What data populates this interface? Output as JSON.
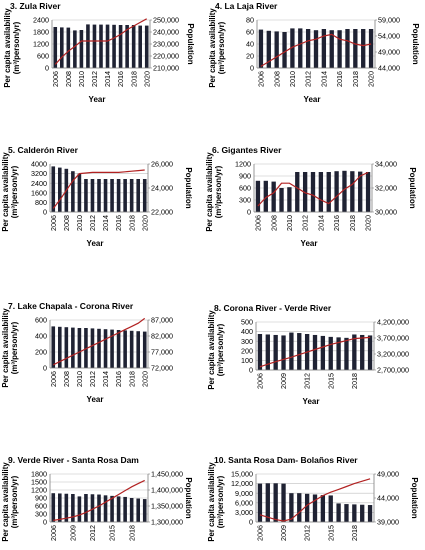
{
  "colors": {
    "bar": "#1f2233",
    "line": "#b22222",
    "grid": "#bfbfbf",
    "axis": "#7f7f7f"
  },
  "chart_data": [
    {
      "type": "bar",
      "title": "3. Zula River",
      "xlabel": "Year",
      "ylabel_lines": [
        "Per capita availability",
        "(m³/person/yr)"
      ],
      "y2label": "Population",
      "x": [
        2006,
        2007,
        2008,
        2009,
        2010,
        2011,
        2012,
        2013,
        2014,
        2015,
        2016,
        2017,
        2018,
        2019,
        2020
      ],
      "x_ticks": [
        2006,
        2008,
        2010,
        2012,
        2014,
        2016,
        2018,
        2020
      ],
      "ylim": [
        0,
        2400
      ],
      "y_ticks": [
        0,
        600,
        1200,
        1800,
        2400
      ],
      "y_tick_labels": [
        "0",
        "600",
        "1200",
        "1800",
        "2400"
      ],
      "y2lim": [
        210000,
        250000
      ],
      "y2_ticks": [
        210000,
        220000,
        230000,
        240000,
        250000
      ],
      "y2_tick_labels": [
        "210,000",
        "220,000",
        "230,000",
        "240,000",
        "250,000"
      ],
      "series": [
        {
          "axis": "left",
          "kind": "bar",
          "values": [
            2050,
            2030,
            2020,
            1880,
            1900,
            2180,
            2170,
            2170,
            2170,
            2160,
            2150,
            2150,
            2150,
            2120,
            2120
          ]
        },
        {
          "axis": "right",
          "kind": "line",
          "values": [
            213000,
            219000,
            224000,
            228000,
            232500,
            232500,
            232500,
            232500,
            232500,
            235000,
            238000,
            242000,
            245000,
            248000,
            251000
          ]
        }
      ]
    },
    {
      "type": "bar",
      "title": "4. La Laja River",
      "xlabel": "Year",
      "ylabel_lines": [
        "Per capita availability",
        "(m³/person/yr)"
      ],
      "y2label": "Population",
      "x": [
        2006,
        2007,
        2008,
        2009,
        2010,
        2011,
        2012,
        2013,
        2014,
        2015,
        2016,
        2017,
        2018,
        2019,
        2020
      ],
      "x_ticks": [
        2006,
        2008,
        2010,
        2012,
        2014,
        2016,
        2018,
        2020
      ],
      "ylim": [
        0,
        80
      ],
      "y_ticks": [
        0,
        20,
        40,
        60,
        80
      ],
      "y_tick_labels": [
        "0",
        "20",
        "40",
        "60",
        "80"
      ],
      "y2lim": [
        44000,
        59000
      ],
      "y2_ticks": [
        44000,
        49000,
        54000,
        59000
      ],
      "y2_tick_labels": [
        "44,000",
        "49,000",
        "54,000",
        "59,000"
      ],
      "series": [
        {
          "axis": "left",
          "kind": "bar",
          "values": [
            64,
            62,
            61,
            60,
            66,
            66,
            65,
            63,
            65,
            63,
            63,
            65,
            65,
            65,
            65
          ]
        },
        {
          "axis": "right",
          "kind": "line",
          "values": [
            44500,
            46000,
            47500,
            49000,
            50500,
            51500,
            52500,
            53000,
            54000,
            54500,
            53000,
            52500,
            51500,
            51000,
            51500
          ]
        }
      ]
    },
    {
      "type": "bar",
      "title": "5. Calderón River",
      "xlabel": "Year",
      "ylabel_lines": [
        "Per capita availability",
        "(m³/person/yr)"
      ],
      "y2label": "Population",
      "x": [
        2006,
        2007,
        2008,
        2009,
        2010,
        2011,
        2012,
        2013,
        2014,
        2015,
        2016,
        2017,
        2018,
        2019,
        2020
      ],
      "x_ticks": [
        2006,
        2008,
        2010,
        2012,
        2014,
        2016,
        2018,
        2020
      ],
      "ylim": [
        0,
        4000
      ],
      "y_ticks": [
        0,
        800,
        1600,
        2400,
        3200,
        4000
      ],
      "y_tick_labels": [
        "0",
        "800",
        "1600",
        "2400",
        "3200",
        "4000"
      ],
      "y2lim": [
        22000,
        26000
      ],
      "y2_ticks": [
        22000,
        24000,
        26000
      ],
      "y2_tick_labels": [
        "22,000",
        "24,000",
        "26,000"
      ],
      "series": [
        {
          "axis": "left",
          "kind": "bar",
          "values": [
            3800,
            3700,
            3600,
            3400,
            3200,
            2750,
            2750,
            2750,
            2750,
            2750,
            2750,
            2750,
            2750,
            2750,
            2750
          ]
        },
        {
          "axis": "right",
          "kind": "line",
          "values": [
            22300,
            23000,
            23800,
            24600,
            25200,
            25250,
            25300,
            25300,
            25300,
            25300,
            25300,
            25350,
            25400,
            25450,
            25500
          ]
        }
      ]
    },
    {
      "type": "bar",
      "title": "6. Gigantes River",
      "xlabel": "Year",
      "ylabel_lines": [
        "Per capita availability",
        "(m³/person/yr)"
      ],
      "y2label": "Population",
      "x": [
        2006,
        2007,
        2008,
        2009,
        2010,
        2011,
        2012,
        2013,
        2014,
        2015,
        2016,
        2017,
        2018,
        2019,
        2020
      ],
      "x_ticks": [
        2006,
        2008,
        2010,
        2012,
        2014,
        2016,
        2018,
        2020
      ],
      "ylim": [
        0,
        1200
      ],
      "y_ticks": [
        0,
        300,
        600,
        900,
        1200
      ],
      "y_tick_labels": [
        "0",
        "300",
        "600",
        "900",
        "1200"
      ],
      "y2lim": [
        30000,
        34000
      ],
      "y2_ticks": [
        30000,
        32000,
        34000
      ],
      "y2_tick_labels": [
        "30,000",
        "32,000",
        "34,000"
      ],
      "series": [
        {
          "axis": "left",
          "kind": "bar",
          "values": [
            780,
            780,
            760,
            600,
            620,
            1000,
            1000,
            1000,
            1000,
            1000,
            1020,
            1030,
            1020,
            1010,
            1000
          ]
        },
        {
          "axis": "right",
          "kind": "line",
          "values": [
            30500,
            31200,
            31600,
            32400,
            32400,
            32000,
            31600,
            31400,
            31000,
            30700,
            31300,
            31900,
            32300,
            33000,
            33300
          ]
        }
      ]
    },
    {
      "type": "bar",
      "title": "7. Lake Chapala - Corona River",
      "xlabel": "Year",
      "ylabel_lines": [
        "Per capita availability",
        "(m³/person/yr)"
      ],
      "y2label": "",
      "x": [
        2006,
        2007,
        2008,
        2009,
        2010,
        2011,
        2012,
        2013,
        2014,
        2015,
        2016,
        2017,
        2018,
        2019,
        2020
      ],
      "x_ticks": [
        2006,
        2008,
        2010,
        2012,
        2014,
        2016,
        2018,
        2020
      ],
      "ylim": [
        0,
        600
      ],
      "y_ticks": [
        0,
        200,
        400,
        600
      ],
      "y_tick_labels": [
        "0",
        "200",
        "400",
        "600"
      ],
      "y2lim": [
        72000,
        87000
      ],
      "y2_ticks": [
        72000,
        77000,
        82000,
        87000
      ],
      "y2_tick_labels": [
        "72,000",
        "77,000",
        "82,000",
        "87,000"
      ],
      "series": [
        {
          "axis": "left",
          "kind": "bar",
          "values": [
            520,
            515,
            510,
            505,
            500,
            500,
            495,
            490,
            485,
            480,
            475,
            470,
            465,
            460,
            455
          ]
        },
        {
          "axis": "right",
          "kind": "line",
          "values": [
            73000,
            74000,
            75000,
            76000,
            77000,
            78000,
            79000,
            80000,
            81000,
            82000,
            83000,
            84000,
            85000,
            86000,
            87500
          ]
        }
      ]
    },
    {
      "type": "bar",
      "title": "8. Corona River - Verde River",
      "xlabel": "Year",
      "ylabel_lines": [
        "Per capita availability",
        "(m³/person/yr)"
      ],
      "y2label": "",
      "x": [
        2006,
        2007,
        2008,
        2009,
        2010,
        2011,
        2012,
        2013,
        2014,
        2015,
        2016,
        2017,
        2018,
        2019,
        2020
      ],
      "x_ticks": [
        2006,
        2009,
        2012,
        2015,
        2018
      ],
      "ylim": [
        0,
        500
      ],
      "y_ticks": [
        0,
        100,
        200,
        300,
        400,
        500
      ],
      "y_tick_labels": [
        "0",
        "100",
        "200",
        "300",
        "400",
        "500"
      ],
      "y2lim": [
        2700000,
        4200000
      ],
      "y2_ticks": [
        2700000,
        3200000,
        3700000,
        4200000
      ],
      "y2_tick_labels": [
        "2,700,000",
        "3,200,000",
        "3,700,000",
        "4,200,000"
      ],
      "series": [
        {
          "axis": "left",
          "kind": "bar",
          "values": [
            375,
            370,
            365,
            360,
            390,
            385,
            375,
            365,
            355,
            345,
            340,
            335,
            370,
            365,
            360
          ]
        },
        {
          "axis": "right",
          "kind": "line",
          "values": [
            2800000,
            2880000,
            2960000,
            3030000,
            3100000,
            3180000,
            3260000,
            3340000,
            3420000,
            3500000,
            3560000,
            3620000,
            3680000,
            3700000,
            3720000
          ]
        }
      ]
    },
    {
      "type": "bar",
      "title": "9. Verde River - Santa Rosa Dam",
      "xlabel": "Year",
      "ylabel_lines": [
        "Per capita availability",
        "(m³/person/yr)"
      ],
      "y2label": "Population",
      "x": [
        2006,
        2007,
        2008,
        2009,
        2010,
        2011,
        2012,
        2013,
        2014,
        2015,
        2016,
        2017,
        2018,
        2019,
        2020
      ],
      "x_ticks": [
        2006,
        2009,
        2012,
        2015,
        2018
      ],
      "ylim": [
        0,
        1800
      ],
      "y_ticks": [
        0,
        300,
        600,
        900,
        1200,
        1500,
        1800
      ],
      "y_tick_labels": [
        "0",
        "300",
        "600",
        "900",
        "1200",
        "1500",
        "1800"
      ],
      "y2lim": [
        1300000,
        1450000
      ],
      "y2_ticks": [
        1300000,
        1350000,
        1400000,
        1450000
      ],
      "y2_tick_labels": [
        "1,300,000",
        "1,350,000",
        "1,400,000",
        "1,450,000"
      ],
      "series": [
        {
          "axis": "left",
          "kind": "bar",
          "values": [
            1080,
            1070,
            1060,
            1050,
            960,
            1050,
            1040,
            1030,
            1000,
            980,
            960,
            940,
            900,
            880,
            860
          ]
        },
        {
          "axis": "right",
          "kind": "line",
          "values": [
            1305000,
            1308000,
            1312000,
            1316000,
            1322000,
            1330000,
            1340000,
            1350000,
            1362000,
            1374000,
            1386000,
            1398000,
            1410000,
            1420000,
            1430000
          ]
        }
      ]
    },
    {
      "type": "bar",
      "title": "10. Santa Rosa Dam- Bolaños River",
      "xlabel": "Year",
      "ylabel_lines": [
        "Per capita availability",
        "(m³/person/yr)"
      ],
      "y2label": "Population",
      "x": [
        2006,
        2007,
        2008,
        2009,
        2010,
        2011,
        2012,
        2013,
        2014,
        2015,
        2016,
        2017,
        2018,
        2019,
        2020
      ],
      "x_ticks": [
        2006,
        2009,
        2012,
        2015,
        2018
      ],
      "ylim": [
        0,
        15000
      ],
      "y_ticks": [
        0,
        3000,
        6000,
        9000,
        12000,
        15000
      ],
      "y_tick_labels": [
        "0",
        "3,000",
        "6,000",
        "9,000",
        "12,000",
        "15,000"
      ],
      "y2lim": [
        39000,
        49000
      ],
      "y2_ticks": [
        39000,
        44000,
        49000
      ],
      "y2_tick_labels": [
        "39,000",
        "44,000",
        "49,000"
      ],
      "series": [
        {
          "axis": "left",
          "kind": "bar",
          "values": [
            12000,
            12100,
            12100,
            12000,
            9000,
            9000,
            8800,
            8600,
            8400,
            8300,
            5800,
            5600,
            5500,
            5400,
            5300
          ]
        },
        {
          "axis": "right",
          "kind": "line",
          "values": [
            40500,
            40000,
            39500,
            39200,
            39600,
            41000,
            42500,
            43500,
            44500,
            45200,
            45800,
            46400,
            47000,
            47500,
            48000
          ]
        }
      ]
    }
  ]
}
